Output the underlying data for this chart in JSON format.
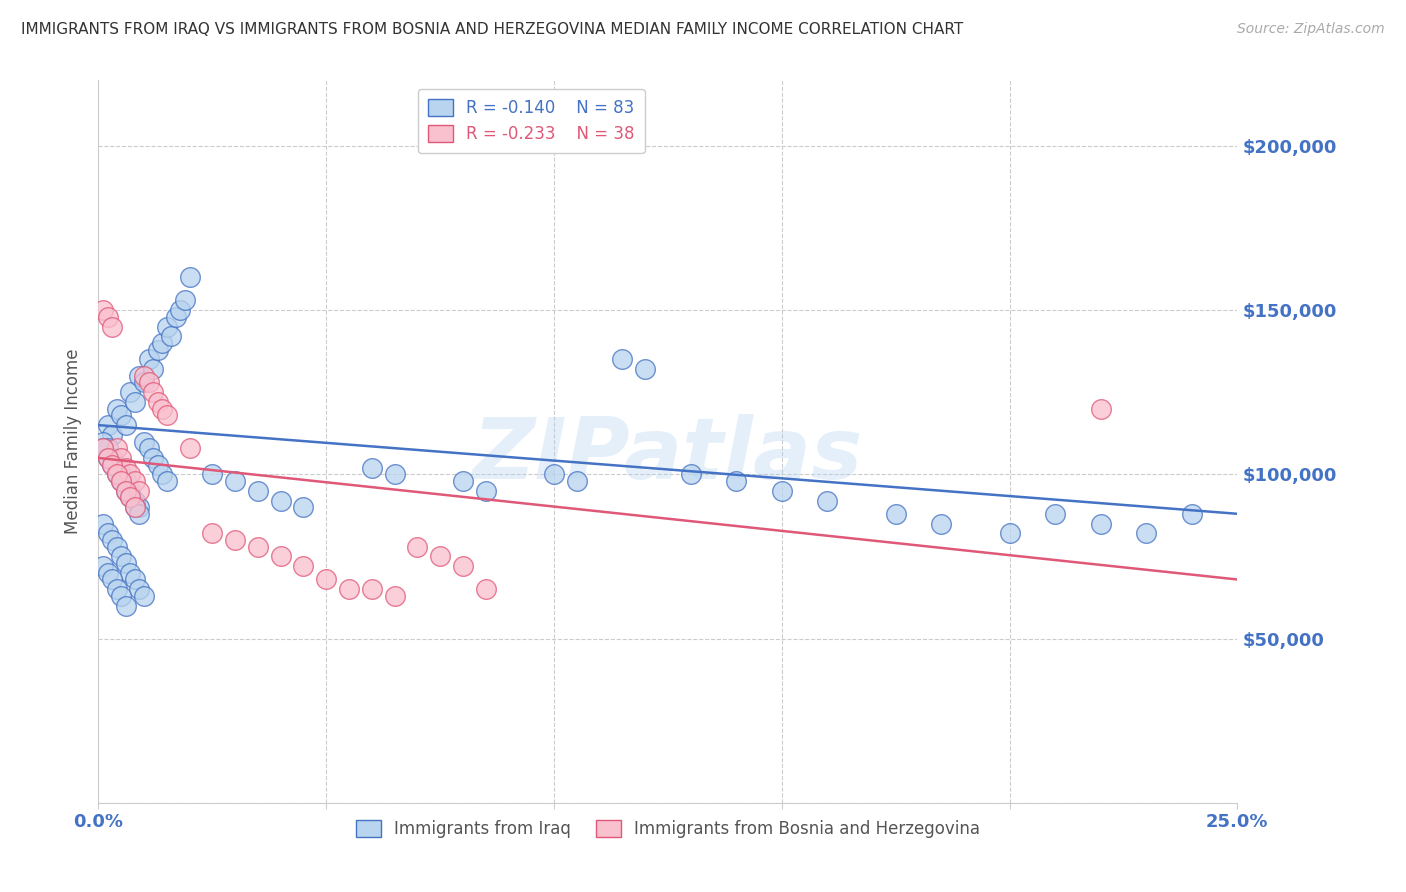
{
  "title": "IMMIGRANTS FROM IRAQ VS IMMIGRANTS FROM BOSNIA AND HERZEGOVINA MEDIAN FAMILY INCOME CORRELATION CHART",
  "source": "Source: ZipAtlas.com",
  "ylabel": "Median Family Income",
  "watermark": "ZIPatlas",
  "iraq_R": -0.14,
  "iraq_N": 83,
  "bosnia_R": -0.233,
  "bosnia_N": 38,
  "iraq_color": "#b8d4ee",
  "iraq_line_color": "#4472c4",
  "bosnia_color": "#f9c0ce",
  "bosnia_line_color": "#e05878",
  "legend_label_iraq": "Immigrants from Iraq",
  "legend_label_bosnia": "Immigrants from Bosnia and Herzegovina",
  "yticks": [
    0,
    50000,
    100000,
    150000,
    200000
  ],
  "ytick_labels": [
    "",
    "$50,000",
    "$100,000",
    "$150,000",
    "$200,000"
  ],
  "ylim": [
    0,
    220000
  ],
  "xlim": [
    0.0,
    0.25
  ],
  "title_color": "#333333",
  "tick_color": "#4472c4",
  "background_color": "#ffffff",
  "grid_color": "#cccccc",
  "iraq_line_y0": 115000,
  "iraq_line_y1": 88000,
  "bosnia_line_y0": 105000,
  "bosnia_line_y1": 68000,
  "iraq_points": [
    [
      0.002,
      115000
    ],
    [
      0.003,
      112000
    ],
    [
      0.004,
      120000
    ],
    [
      0.005,
      118000
    ],
    [
      0.006,
      115000
    ],
    [
      0.007,
      125000
    ],
    [
      0.008,
      122000
    ],
    [
      0.009,
      130000
    ],
    [
      0.01,
      128000
    ],
    [
      0.011,
      135000
    ],
    [
      0.012,
      132000
    ],
    [
      0.013,
      138000
    ],
    [
      0.014,
      140000
    ],
    [
      0.015,
      145000
    ],
    [
      0.016,
      142000
    ],
    [
      0.017,
      148000
    ],
    [
      0.018,
      150000
    ],
    [
      0.019,
      153000
    ],
    [
      0.02,
      160000
    ],
    [
      0.001,
      110000
    ],
    [
      0.002,
      108000
    ],
    [
      0.003,
      105000
    ],
    [
      0.004,
      102000
    ],
    [
      0.005,
      100000
    ],
    [
      0.006,
      98000
    ],
    [
      0.007,
      95000
    ],
    [
      0.008,
      92000
    ],
    [
      0.009,
      90000
    ],
    [
      0.001,
      108000
    ],
    [
      0.002,
      105000
    ],
    [
      0.003,
      103000
    ],
    [
      0.004,
      100000
    ],
    [
      0.005,
      98000
    ],
    [
      0.006,
      95000
    ],
    [
      0.007,
      93000
    ],
    [
      0.008,
      90000
    ],
    [
      0.009,
      88000
    ],
    [
      0.01,
      110000
    ],
    [
      0.011,
      108000
    ],
    [
      0.012,
      105000
    ],
    [
      0.013,
      103000
    ],
    [
      0.014,
      100000
    ],
    [
      0.015,
      98000
    ],
    [
      0.001,
      85000
    ],
    [
      0.002,
      82000
    ],
    [
      0.003,
      80000
    ],
    [
      0.004,
      78000
    ],
    [
      0.005,
      75000
    ],
    [
      0.006,
      73000
    ],
    [
      0.007,
      70000
    ],
    [
      0.008,
      68000
    ],
    [
      0.009,
      65000
    ],
    [
      0.01,
      63000
    ],
    [
      0.025,
      100000
    ],
    [
      0.03,
      98000
    ],
    [
      0.035,
      95000
    ],
    [
      0.04,
      92000
    ],
    [
      0.045,
      90000
    ],
    [
      0.06,
      102000
    ],
    [
      0.065,
      100000
    ],
    [
      0.08,
      98000
    ],
    [
      0.085,
      95000
    ],
    [
      0.1,
      100000
    ],
    [
      0.105,
      98000
    ],
    [
      0.115,
      135000
    ],
    [
      0.12,
      132000
    ],
    [
      0.13,
      100000
    ],
    [
      0.14,
      98000
    ],
    [
      0.15,
      95000
    ],
    [
      0.16,
      92000
    ],
    [
      0.175,
      88000
    ],
    [
      0.185,
      85000
    ],
    [
      0.2,
      82000
    ],
    [
      0.21,
      88000
    ],
    [
      0.22,
      85000
    ],
    [
      0.23,
      82000
    ],
    [
      0.24,
      88000
    ],
    [
      0.001,
      72000
    ],
    [
      0.002,
      70000
    ],
    [
      0.003,
      68000
    ],
    [
      0.004,
      65000
    ],
    [
      0.005,
      63000
    ],
    [
      0.006,
      60000
    ]
  ],
  "bosnia_points": [
    [
      0.001,
      150000
    ],
    [
      0.002,
      148000
    ],
    [
      0.003,
      145000
    ],
    [
      0.004,
      108000
    ],
    [
      0.005,
      105000
    ],
    [
      0.006,
      102000
    ],
    [
      0.007,
      100000
    ],
    [
      0.008,
      98000
    ],
    [
      0.009,
      95000
    ],
    [
      0.01,
      130000
    ],
    [
      0.011,
      128000
    ],
    [
      0.012,
      125000
    ],
    [
      0.013,
      122000
    ],
    [
      0.014,
      120000
    ],
    [
      0.015,
      118000
    ],
    [
      0.001,
      108000
    ],
    [
      0.002,
      105000
    ],
    [
      0.003,
      103000
    ],
    [
      0.004,
      100000
    ],
    [
      0.005,
      98000
    ],
    [
      0.006,
      95000
    ],
    [
      0.007,
      93000
    ],
    [
      0.008,
      90000
    ],
    [
      0.02,
      108000
    ],
    [
      0.025,
      82000
    ],
    [
      0.03,
      80000
    ],
    [
      0.035,
      78000
    ],
    [
      0.04,
      75000
    ],
    [
      0.045,
      72000
    ],
    [
      0.05,
      68000
    ],
    [
      0.055,
      65000
    ],
    [
      0.06,
      65000
    ],
    [
      0.065,
      63000
    ],
    [
      0.07,
      78000
    ],
    [
      0.075,
      75000
    ],
    [
      0.08,
      72000
    ],
    [
      0.085,
      65000
    ],
    [
      0.22,
      120000
    ]
  ]
}
